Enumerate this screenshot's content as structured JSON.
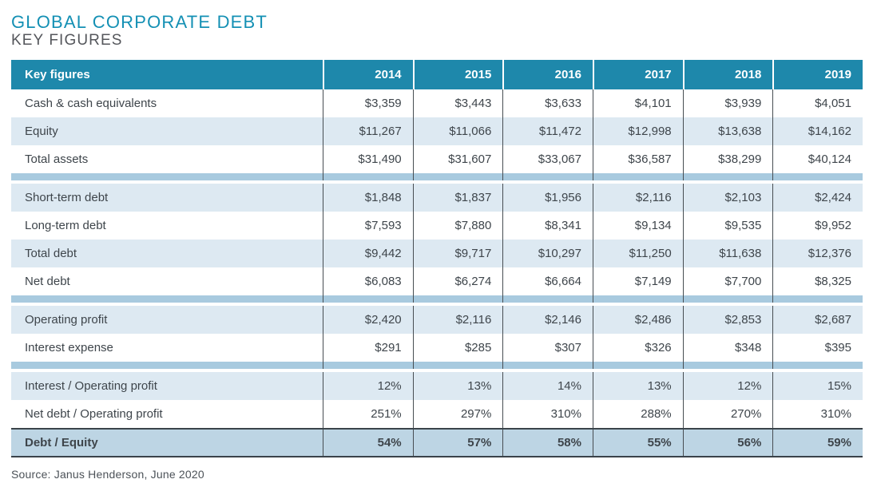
{
  "title": "GLOBAL CORPORATE DEBT",
  "subtitle": "KEY FIGURES",
  "source": "Source: Janus Henderson, June 2020",
  "colors": {
    "header_teal": "#1e88ab",
    "title_teal": "#1490b4",
    "subtitle_gray": "#54565b",
    "shaded_row": "#dde9f2",
    "section_band": "#a8cadf",
    "emphasis_row": "#bdd5e4",
    "body_text": "#3e454b",
    "divider": "#474d52",
    "dark_border": "#3a434a"
  },
  "chart_data": {
    "type": "table",
    "title": "GLOBAL CORPORATE DEBT",
    "subtitle": "KEY FIGURES",
    "columns": [
      "Key figures",
      "2014",
      "2015",
      "2016",
      "2017",
      "2018",
      "2019"
    ],
    "sections": [
      {
        "name": "balance-sheet",
        "first_row_shaded": false,
        "rows": [
          {
            "label": "Cash & cash equivalents",
            "values": [
              "$3,359",
              "$3,443",
              "$3,633",
              "$4,101",
              "$3,939",
              "$4,051"
            ]
          },
          {
            "label": "Equity",
            "values": [
              "$11,267",
              "$11,066",
              "$11,472",
              "$12,998",
              "$13,638",
              "$14,162"
            ]
          },
          {
            "label": "Total assets",
            "values": [
              "$31,490",
              "$31,607",
              "$33,067",
              "$36,587",
              "$38,299",
              "$40,124"
            ]
          }
        ]
      },
      {
        "name": "debt",
        "first_row_shaded": true,
        "rows": [
          {
            "label": "Short-term debt",
            "values": [
              "$1,848",
              "$1,837",
              "$1,956",
              "$2,116",
              "$2,103",
              "$2,424"
            ]
          },
          {
            "label": "Long-term debt",
            "values": [
              "$7,593",
              "$7,880",
              "$8,341",
              "$9,134",
              "$9,535",
              "$9,952"
            ]
          },
          {
            "label": "Total debt",
            "values": [
              "$9,442",
              "$9,717",
              "$10,297",
              "$11,250",
              "$11,638",
              "$12,376"
            ]
          },
          {
            "label": "Net debt",
            "values": [
              "$6,083",
              "$6,274",
              "$6,664",
              "$7,149",
              "$7,700",
              "$8,325"
            ]
          }
        ]
      },
      {
        "name": "profit",
        "first_row_shaded": true,
        "rows": [
          {
            "label": "Operating profit",
            "values": [
              "$2,420",
              "$2,116",
              "$2,146",
              "$2,486",
              "$2,853",
              "$2,687"
            ]
          },
          {
            "label": "Interest expense",
            "values": [
              "$291",
              "$285",
              "$307",
              "$326",
              "$348",
              "$395"
            ]
          }
        ]
      },
      {
        "name": "ratios",
        "first_row_shaded": true,
        "rows": [
          {
            "label": "Interest / Operating profit",
            "values": [
              "12%",
              "13%",
              "14%",
              "13%",
              "12%",
              "15%"
            ]
          },
          {
            "label": "Net debt / Operating profit",
            "values": [
              "251%",
              "297%",
              "310%",
              "288%",
              "270%",
              "310%"
            ]
          },
          {
            "label": "Debt / Equity",
            "values": [
              "54%",
              "57%",
              "58%",
              "55%",
              "56%",
              "59%"
            ],
            "emphasis": true
          }
        ]
      }
    ]
  }
}
